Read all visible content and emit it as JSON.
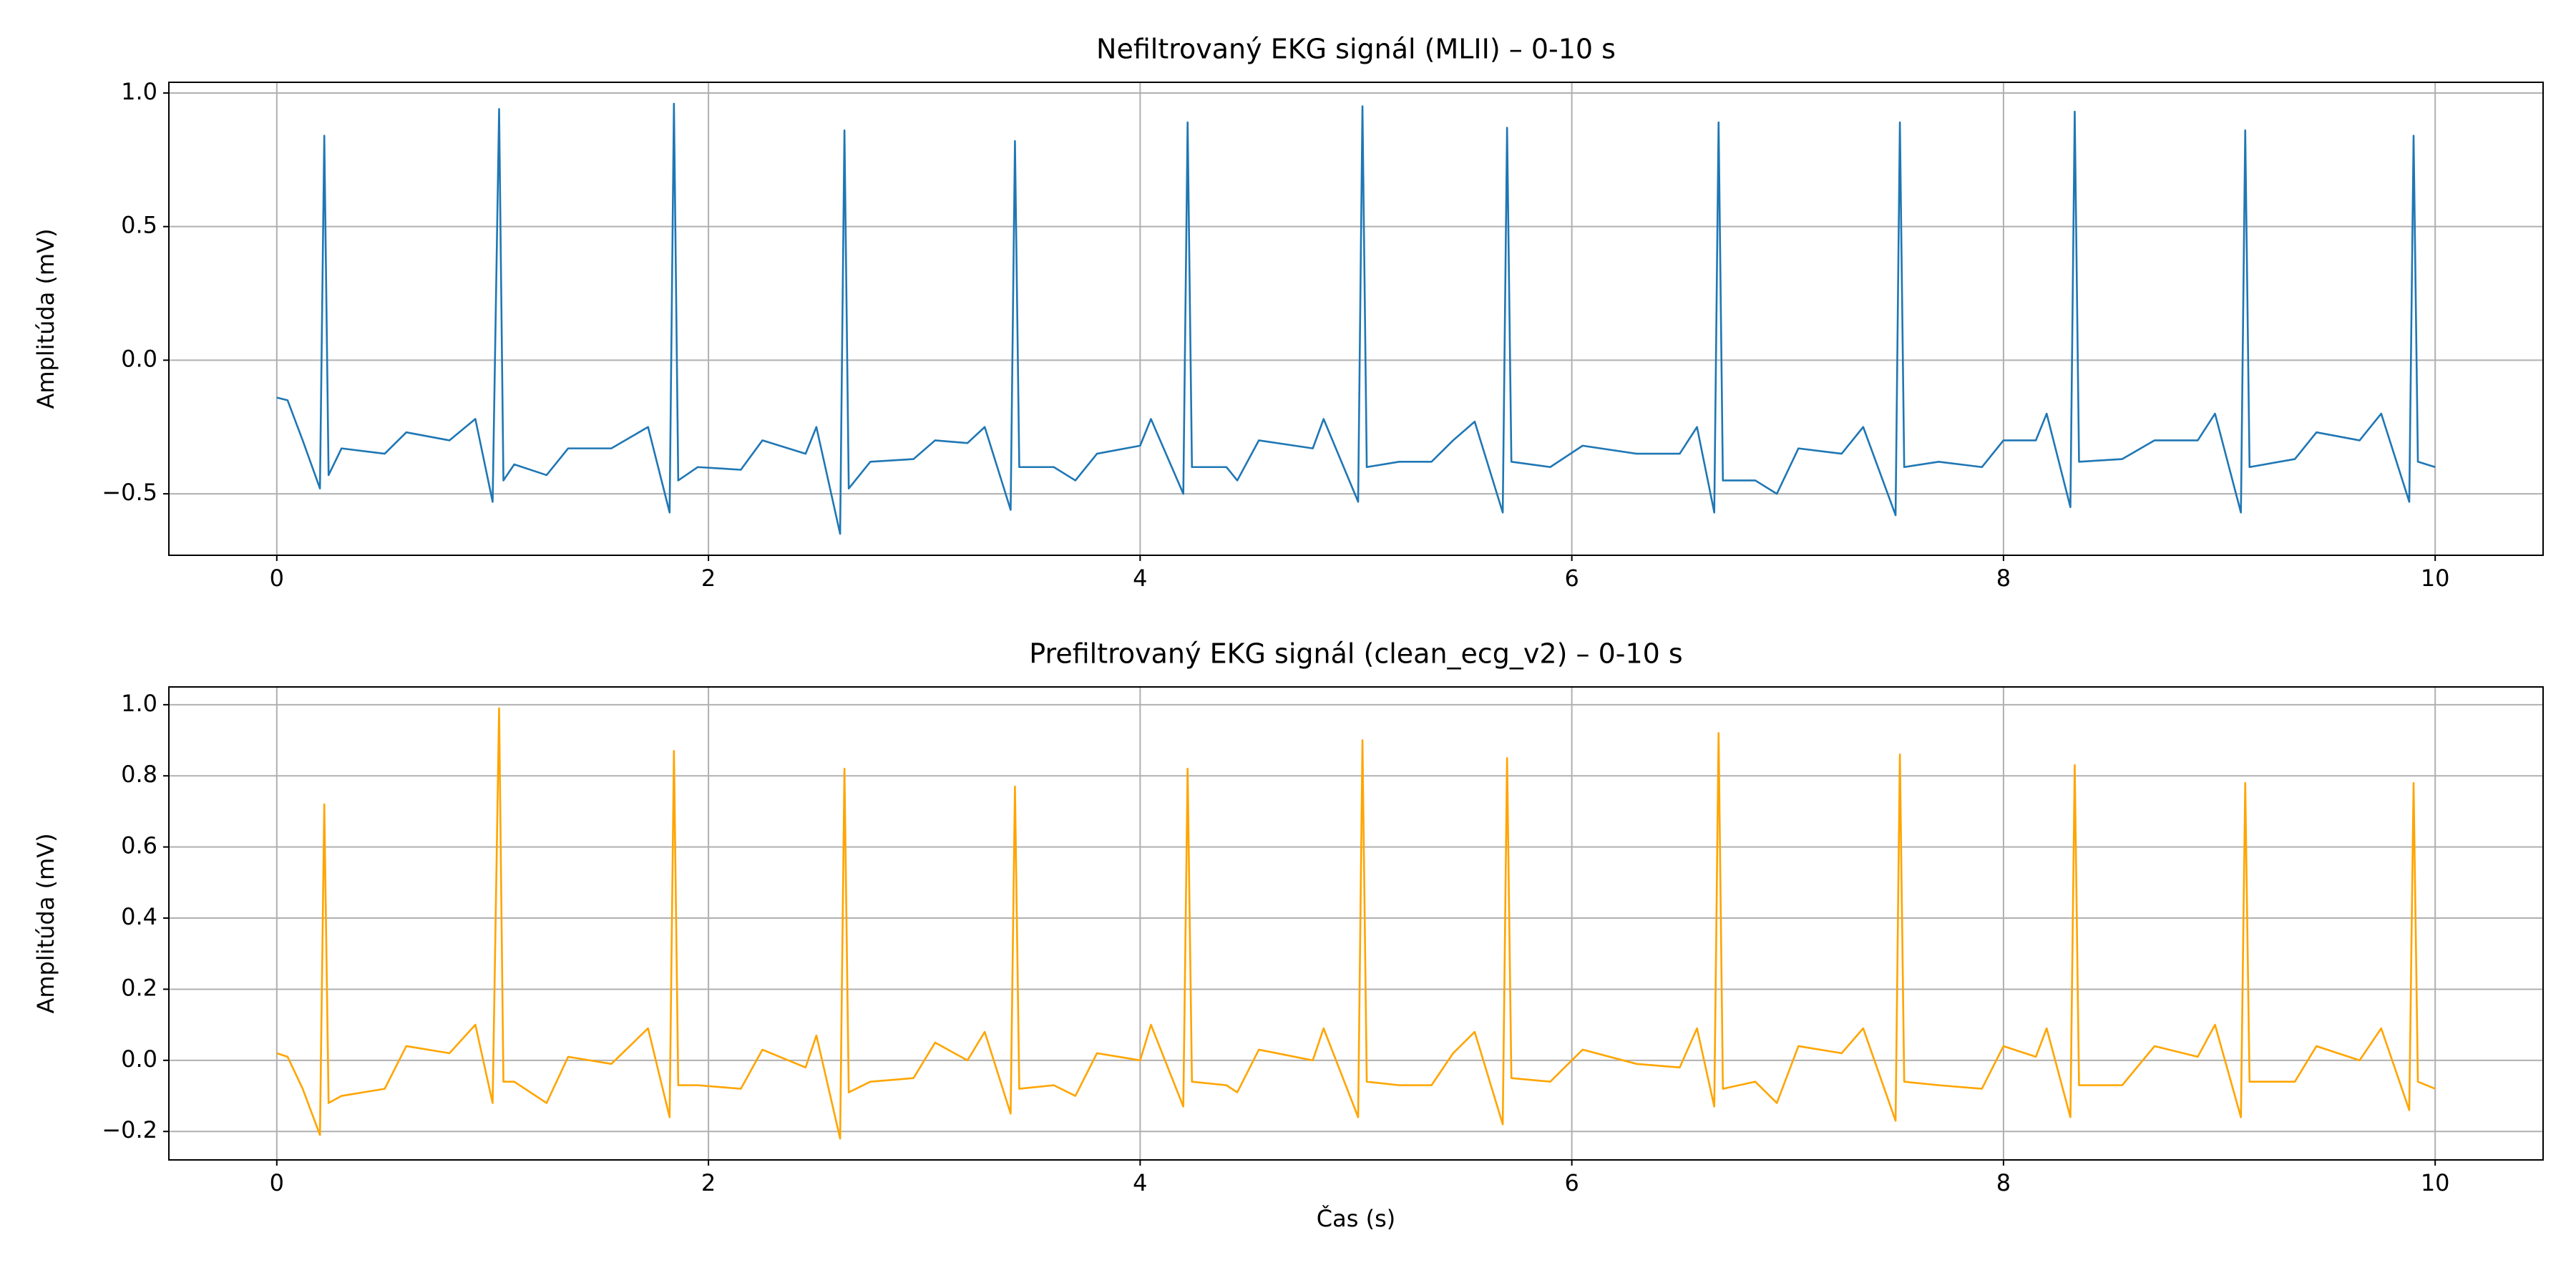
{
  "chart_data": [
    {
      "type": "line",
      "title": "Nefiltrovaný EKG signál (MLII) – 0-10 s",
      "ylabel": "Amplitúda (mV)",
      "grid": true,
      "xlim": [
        -0.5,
        10.5
      ],
      "ylim": [
        -0.73,
        1.04
      ],
      "xticks": [
        0,
        2,
        4,
        6,
        8,
        10
      ],
      "yticks": [
        {
          "value": -0.5,
          "label": "−0.5"
        },
        {
          "value": 0,
          "label": "0.0"
        },
        {
          "value": 0.5,
          "label": "0.5"
        },
        {
          "value": 1,
          "label": "1.0"
        }
      ],
      "x": [
        0,
        0.05,
        0.12,
        0.2,
        0.22,
        0.24,
        0.3,
        0.5,
        0.6,
        0.8,
        0.92,
        1.0,
        1.03,
        1.05,
        1.1,
        1.25,
        1.35,
        1.55,
        1.72,
        1.82,
        1.84,
        1.86,
        1.95,
        2.15,
        2.25,
        2.45,
        2.5,
        2.61,
        2.63,
        2.65,
        2.75,
        2.95,
        3.05,
        3.2,
        3.28,
        3.4,
        3.42,
        3.44,
        3.6,
        3.7,
        3.8,
        4.0,
        4.05,
        4.2,
        4.22,
        4.24,
        4.4,
        4.45,
        4.55,
        4.8,
        4.85,
        5.01,
        5.03,
        5.05,
        5.2,
        5.35,
        5.45,
        5.55,
        5.68,
        5.7,
        5.72,
        5.9,
        6.05,
        6.3,
        6.5,
        6.58,
        6.66,
        6.68,
        6.7,
        6.85,
        6.95,
        7.05,
        7.25,
        7.35,
        7.5,
        7.52,
        7.54,
        7.7,
        7.9,
        8.0,
        8.15,
        8.2,
        8.31,
        8.33,
        8.35,
        8.55,
        8.7,
        8.9,
        8.98,
        9.1,
        9.12,
        9.14,
        9.35,
        9.45,
        9.65,
        9.75,
        9.88,
        9.9,
        9.92,
        10.0
      ],
      "series": [
        {
          "color": "#1f77b4",
          "values": [
            -0.14,
            -0.15,
            -0.3,
            -0.48,
            0.84,
            -0.43,
            -0.33,
            -0.35,
            -0.27,
            -0.3,
            -0.22,
            -0.53,
            0.94,
            -0.45,
            -0.39,
            -0.43,
            -0.33,
            -0.33,
            -0.25,
            -0.57,
            0.96,
            -0.45,
            -0.4,
            -0.41,
            -0.3,
            -0.35,
            -0.25,
            -0.65,
            0.86,
            -0.48,
            -0.38,
            -0.37,
            -0.3,
            -0.31,
            -0.25,
            -0.56,
            0.82,
            -0.4,
            -0.4,
            -0.45,
            -0.35,
            -0.32,
            -0.22,
            -0.5,
            0.89,
            -0.4,
            -0.4,
            -0.45,
            -0.3,
            -0.33,
            -0.22,
            -0.53,
            0.95,
            -0.4,
            -0.38,
            -0.38,
            -0.3,
            -0.23,
            -0.57,
            0.87,
            -0.38,
            -0.4,
            -0.32,
            -0.35,
            -0.35,
            -0.25,
            -0.57,
            0.89,
            -0.45,
            -0.45,
            -0.5,
            -0.33,
            -0.35,
            -0.25,
            -0.58,
            0.89,
            -0.4,
            -0.38,
            -0.4,
            -0.3,
            -0.3,
            -0.2,
            -0.55,
            0.93,
            -0.38,
            -0.37,
            -0.3,
            -0.3,
            -0.2,
            -0.57,
            0.86,
            -0.4,
            -0.37,
            -0.27,
            -0.3,
            -0.2,
            -0.53,
            0.84,
            -0.38,
            -0.4
          ]
        }
      ]
    },
    {
      "type": "line",
      "title": "Prefiltrovaný EKG signál (clean_ecg_v2) – 0-10 s",
      "ylabel": "Amplitúda (mV)",
      "xlabel": "Čas (s)",
      "grid": true,
      "xlim": [
        -0.5,
        10.5
      ],
      "ylim": [
        -0.28,
        1.05
      ],
      "xticks": [
        0,
        2,
        4,
        6,
        8,
        10
      ],
      "yticks": [
        {
          "value": -0.2,
          "label": "−0.2"
        },
        {
          "value": 0,
          "label": "0.0"
        },
        {
          "value": 0.2,
          "label": "0.2"
        },
        {
          "value": 0.4,
          "label": "0.4"
        },
        {
          "value": 0.6,
          "label": "0.6"
        },
        {
          "value": 0.8,
          "label": "0.8"
        },
        {
          "value": 1,
          "label": "1.0"
        }
      ],
      "x": [
        0,
        0.05,
        0.12,
        0.2,
        0.22,
        0.24,
        0.3,
        0.5,
        0.6,
        0.8,
        0.92,
        1.0,
        1.03,
        1.05,
        1.1,
        1.25,
        1.35,
        1.55,
        1.72,
        1.82,
        1.84,
        1.86,
        1.95,
        2.15,
        2.25,
        2.45,
        2.5,
        2.61,
        2.63,
        2.65,
        2.75,
        2.95,
        3.05,
        3.2,
        3.28,
        3.4,
        3.42,
        3.44,
        3.6,
        3.7,
        3.8,
        4.0,
        4.05,
        4.2,
        4.22,
        4.24,
        4.4,
        4.45,
        4.55,
        4.8,
        4.85,
        5.01,
        5.03,
        5.05,
        5.2,
        5.35,
        5.45,
        5.55,
        5.68,
        5.7,
        5.72,
        5.9,
        6.05,
        6.3,
        6.5,
        6.58,
        6.66,
        6.68,
        6.7,
        6.85,
        6.95,
        7.05,
        7.25,
        7.35,
        7.5,
        7.52,
        7.54,
        7.7,
        7.9,
        8.0,
        8.15,
        8.2,
        8.31,
        8.33,
        8.35,
        8.55,
        8.7,
        8.9,
        8.98,
        9.1,
        9.12,
        9.14,
        9.35,
        9.45,
        9.65,
        9.75,
        9.88,
        9.9,
        9.92,
        10.0
      ],
      "series": [
        {
          "color": "#ffa500",
          "values": [
            0.02,
            0.01,
            -0.08,
            -0.21,
            0.72,
            -0.12,
            -0.1,
            -0.08,
            0.04,
            0.02,
            0.1,
            -0.12,
            0.99,
            -0.06,
            -0.06,
            -0.12,
            0.01,
            -0.01,
            0.09,
            -0.16,
            0.87,
            -0.07,
            -0.07,
            -0.08,
            0.03,
            -0.02,
            0.07,
            -0.22,
            0.82,
            -0.09,
            -0.06,
            -0.05,
            0.05,
            0.0,
            0.08,
            -0.15,
            0.77,
            -0.08,
            -0.07,
            -0.1,
            0.02,
            0.0,
            0.1,
            -0.13,
            0.82,
            -0.06,
            -0.07,
            -0.09,
            0.03,
            0.0,
            0.09,
            -0.16,
            0.9,
            -0.06,
            -0.07,
            -0.07,
            0.02,
            0.08,
            -0.18,
            0.85,
            -0.05,
            -0.06,
            0.03,
            -0.01,
            -0.02,
            0.09,
            -0.13,
            0.92,
            -0.08,
            -0.06,
            -0.12,
            0.04,
            0.02,
            0.09,
            -0.17,
            0.86,
            -0.06,
            -0.07,
            -0.08,
            0.04,
            0.01,
            0.09,
            -0.16,
            0.83,
            -0.07,
            -0.07,
            0.04,
            0.01,
            0.1,
            -0.16,
            0.78,
            -0.06,
            -0.06,
            0.04,
            0.0,
            0.09,
            -0.14,
            0.78,
            -0.06,
            -0.08
          ]
        }
      ]
    }
  ]
}
